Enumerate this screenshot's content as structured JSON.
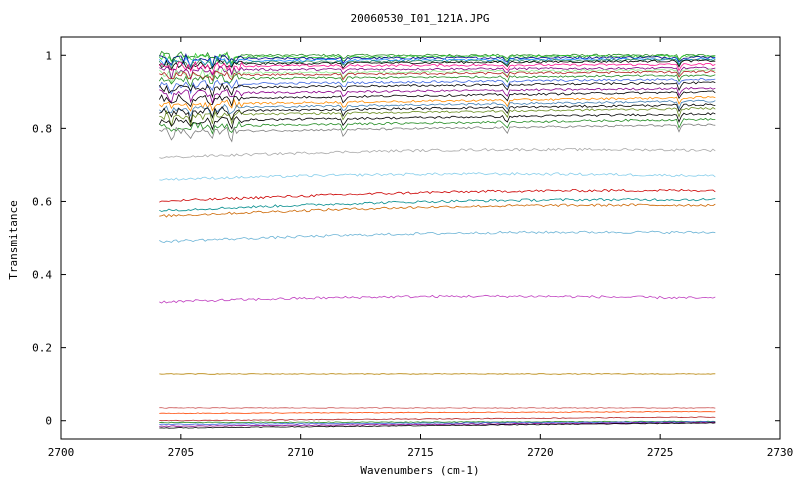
{
  "chart_data": {
    "type": "line",
    "title": "20060530_I01_121A.JPG",
    "xlabel": "Wavenumbers (cm-1)",
    "ylabel": "Transmitance",
    "xlim": [
      2700,
      2730
    ],
    "ylim": [
      -0.05,
      1.05
    ],
    "x_ticks": [
      "2700",
      "2705",
      "2710",
      "2715",
      "2720",
      "2725",
      "2730"
    ],
    "y_ticks": [
      "0",
      "0.2",
      "0.4",
      "0.6",
      "0.8",
      "1"
    ],
    "x_range": [
      2704.1,
      2727.3
    ],
    "grid": false,
    "legend": "none",
    "series": [
      {
        "color": "#228b22",
        "start": 1.0,
        "end": 1.0
      },
      {
        "color": "#32cd32",
        "start": 0.995,
        "end": 0.998
      },
      {
        "color": "#00008b",
        "start": 0.99,
        "end": 0.995
      },
      {
        "color": "#1e90ff",
        "start": 0.985,
        "end": 0.99
      },
      {
        "color": "#2e8b57",
        "start": 0.98,
        "end": 0.988
      },
      {
        "color": "#000000",
        "start": 0.975,
        "end": 0.985
      },
      {
        "color": "#ff1493",
        "start": 0.97,
        "end": 0.975
      },
      {
        "color": "#800080",
        "start": 0.96,
        "end": 0.965
      },
      {
        "color": "#90ee90",
        "start": 0.95,
        "end": 0.96
      },
      {
        "color": "#b22222",
        "start": 0.945,
        "end": 0.955
      },
      {
        "color": "#228b22",
        "start": 0.935,
        "end": 0.945
      },
      {
        "color": "#4169e1",
        "start": 0.92,
        "end": 0.935
      },
      {
        "color": "#000000",
        "start": 0.91,
        "end": 0.925
      },
      {
        "color": "#8b008b",
        "start": 0.895,
        "end": 0.91
      },
      {
        "color": "#000000",
        "start": 0.88,
        "end": 0.9
      },
      {
        "color": "#ff8c00",
        "start": 0.865,
        "end": 0.885
      },
      {
        "color": "#4682b4",
        "start": 0.855,
        "end": 0.875
      },
      {
        "color": "#000000",
        "start": 0.845,
        "end": 0.865
      },
      {
        "color": "#6b8e23",
        "start": 0.835,
        "end": 0.855
      },
      {
        "color": "#000000",
        "start": 0.82,
        "end": 0.84
      },
      {
        "color": "#228b22",
        "start": 0.805,
        "end": 0.825
      },
      {
        "color": "#808080",
        "start": 0.79,
        "end": 0.81
      },
      {
        "color": "#a9a9a9",
        "start": 0.72,
        "end": 0.74
      },
      {
        "color": "#87ceeb",
        "start": 0.66,
        "end": 0.67
      },
      {
        "color": "#cc0000",
        "start": 0.6,
        "end": 0.63
      },
      {
        "color": "#008b8b",
        "start": 0.575,
        "end": 0.605
      },
      {
        "color": "#cc6600",
        "start": 0.56,
        "end": 0.59
      },
      {
        "color": "#6cb4d6",
        "start": 0.49,
        "end": 0.515
      },
      {
        "color": "#c040c0",
        "start": 0.325,
        "end": 0.335
      },
      {
        "color": "#b8860b",
        "start": 0.128,
        "end": 0.128
      },
      {
        "color": "#cd5c5c",
        "start": 0.035,
        "end": 0.035
      },
      {
        "color": "#ff4500",
        "start": 0.02,
        "end": 0.025
      },
      {
        "color": "#b22222",
        "start": 0.0,
        "end": 0.01
      },
      {
        "color": "#228b22",
        "start": -0.005,
        "end": -0.002
      },
      {
        "color": "#4169e1",
        "start": -0.01,
        "end": -0.003
      },
      {
        "color": "#8b008b",
        "start": -0.015,
        "end": -0.005
      },
      {
        "color": "#000000",
        "start": -0.02,
        "end": -0.006
      }
    ]
  }
}
